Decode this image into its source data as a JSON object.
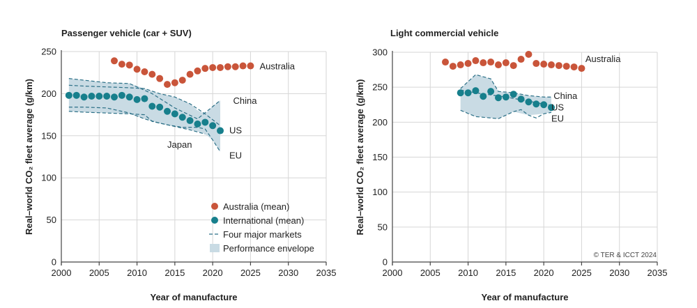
{
  "colors": {
    "australia": "#c9553a",
    "international": "#177f8c",
    "markets_line": "#2b6f86",
    "envelope": "#c9dbe4",
    "grid": "#d6d6d6",
    "axis": "#444444",
    "text": "#222222"
  },
  "credit": "© TER & ICCT 2024",
  "chart_data": [
    {
      "type": "scatter",
      "title": "Passenger vehicle (car + SUV)",
      "xlabel": "Year of manufacture",
      "ylabel": "Real–world CO₂ fleet average (g/km)",
      "xlim": [
        2000,
        2035
      ],
      "ylim": [
        0,
        250
      ],
      "xticks": [
        2000,
        2005,
        2010,
        2015,
        2020,
        2025,
        2030,
        2035
      ],
      "yticks": [
        0,
        50,
        100,
        150,
        200,
        250
      ],
      "grid": true,
      "legend": {
        "placement": "bottom-right",
        "items": [
          "Australia (mean)",
          "International (mean)",
          "Four major markets",
          "Performance envelope"
        ]
      },
      "series": [
        {
          "name": "Australia",
          "kind": "points",
          "x": [
            2007,
            2008,
            2009,
            2010,
            2011,
            2012,
            2013,
            2014,
            2015,
            2016,
            2017,
            2018,
            2019,
            2020,
            2021,
            2022,
            2023,
            2024,
            2025
          ],
          "y": [
            239,
            235,
            234,
            229,
            226,
            223,
            218,
            211,
            213,
            216,
            223,
            227,
            230,
            231,
            231,
            232,
            232,
            233,
            233
          ]
        },
        {
          "name": "International",
          "kind": "points",
          "x": [
            2001,
            2002,
            2003,
            2004,
            2005,
            2006,
            2007,
            2008,
            2009,
            2010,
            2011,
            2012,
            2013,
            2014,
            2015,
            2016,
            2017,
            2018,
            2019,
            2020,
            2021
          ],
          "y": [
            198,
            198,
            196,
            197,
            197,
            197,
            196,
            198,
            196,
            193,
            194,
            185,
            184,
            179,
            176,
            172,
            168,
            164,
            166,
            162,
            156
          ]
        },
        {
          "name": "China",
          "kind": "line",
          "x": [
            2001,
            2003,
            2006,
            2009,
            2012,
            2015,
            2018,
            2021
          ],
          "y": [
            218,
            216,
            213,
            212,
            200,
            183,
            170,
            192
          ]
        },
        {
          "name": "US",
          "kind": "line",
          "x": [
            2001,
            2003,
            2006,
            2009,
            2011,
            2013,
            2015,
            2017,
            2019,
            2021
          ],
          "y": [
            210,
            209,
            208,
            207,
            206,
            200,
            196,
            188,
            176,
            162
          ]
        },
        {
          "name": "Japan",
          "kind": "line",
          "x": [
            2001,
            2003,
            2006,
            2009,
            2011,
            2013,
            2015,
            2017,
            2019
          ],
          "y": [
            184,
            184,
            183,
            177,
            170,
            165,
            161,
            157,
            152
          ]
        },
        {
          "name": "EU",
          "kind": "line",
          "x": [
            2001,
            2003,
            2006,
            2009,
            2011,
            2012,
            2014,
            2016,
            2018,
            2019,
            2020,
            2021
          ],
          "y": [
            179,
            178,
            177,
            176,
            175,
            167,
            163,
            160,
            160,
            158,
            145,
            131
          ]
        }
      ],
      "envelope": {
        "x": [
          2001,
          2003,
          2006,
          2009,
          2011,
          2013,
          2015,
          2017,
          2018,
          2019,
          2020,
          2021
        ],
        "upper": [
          218,
          216,
          213,
          212,
          206,
          200,
          196,
          188,
          180,
          176,
          185,
          192
        ],
        "lower": [
          179,
          178,
          177,
          176,
          170,
          165,
          161,
          157,
          155,
          152,
          145,
          131
        ]
      },
      "annotations": [
        {
          "text": "Australia",
          "x": 2026.2,
          "y": 233
        },
        {
          "text": "China",
          "x": 2022.7,
          "y": 192
        },
        {
          "text": "US",
          "x": 2022.2,
          "y": 157
        },
        {
          "text": "Japan",
          "x": 2014.0,
          "y": 140
        },
        {
          "text": "EU",
          "x": 2022.2,
          "y": 127
        }
      ]
    },
    {
      "type": "scatter",
      "title": "Light commercial vehicle",
      "xlabel": "Year of manufacture",
      "ylabel": "Real–world CO₂ fleet average (g/km)",
      "xlim": [
        2000,
        2035
      ],
      "ylim": [
        0,
        300
      ],
      "xticks": [
        2000,
        2005,
        2010,
        2015,
        2020,
        2025,
        2030,
        2035
      ],
      "yticks": [
        0,
        50,
        100,
        150,
        200,
        250,
        300
      ],
      "grid": true,
      "series": [
        {
          "name": "Australia",
          "kind": "points",
          "x": [
            2007,
            2008,
            2009,
            2010,
            2011,
            2012,
            2013,
            2014,
            2015,
            2016,
            2017,
            2018,
            2019,
            2020,
            2021,
            2022,
            2023,
            2024,
            2025
          ],
          "y": [
            286,
            280,
            282,
            284,
            288,
            285,
            286,
            282,
            285,
            281,
            290,
            297,
            284,
            283,
            282,
            281,
            280,
            279,
            277
          ]
        },
        {
          "name": "International",
          "kind": "points",
          "x": [
            2009,
            2010,
            2011,
            2012,
            2013,
            2014,
            2015,
            2016,
            2017,
            2018,
            2019,
            2020,
            2021
          ],
          "y": [
            242,
            242,
            245,
            237,
            244,
            235,
            236,
            240,
            233,
            229,
            226,
            225,
            221
          ]
        },
        {
          "name": "China",
          "kind": "line",
          "x": [
            2009,
            2011,
            2013,
            2014,
            2016,
            2018,
            2020,
            2021
          ],
          "y": [
            248,
            268,
            262,
            244,
            242,
            238,
            236,
            236
          ]
        },
        {
          "name": "US",
          "kind": "line",
          "x": [
            2009,
            2011,
            2013,
            2015,
            2017,
            2019,
            2021
          ],
          "y": [
            246,
            242,
            239,
            236,
            232,
            228,
            224
          ]
        },
        {
          "name": "EU",
          "kind": "line",
          "x": [
            2009,
            2011,
            2013,
            2014,
            2016,
            2017,
            2018,
            2019,
            2020,
            2021
          ],
          "y": [
            217,
            208,
            206,
            205,
            215,
            218,
            210,
            206,
            212,
            214
          ]
        }
      ],
      "envelope": {
        "x": [
          2009,
          2011,
          2013,
          2014,
          2016,
          2018,
          2020,
          2021
        ],
        "upper": [
          248,
          268,
          262,
          244,
          242,
          238,
          236,
          236
        ],
        "lower": [
          217,
          208,
          206,
          205,
          215,
          210,
          212,
          214
        ]
      },
      "annotations": [
        {
          "text": "Australia",
          "x": 2025.5,
          "y": 291
        },
        {
          "text": "China",
          "x": 2021.3,
          "y": 238
        },
        {
          "text": "US",
          "x": 2021.0,
          "y": 222
        },
        {
          "text": "EU",
          "x": 2021.0,
          "y": 206
        }
      ]
    }
  ]
}
